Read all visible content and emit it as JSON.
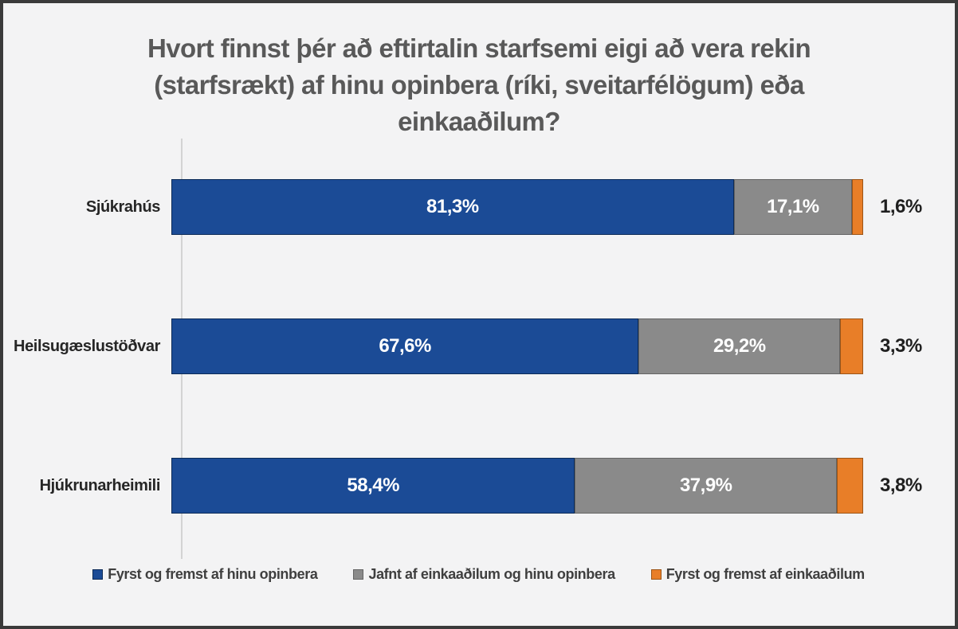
{
  "title": "Hvort finnst þér að eftirtalin starfsemi eigi að vera rekin (starfsrækt) af hinu opinbera (ríki, sveitarfélögum) eða einkaaðilum?",
  "colors": {
    "background": "#f3f3f4",
    "frame_border": "#3a3a3a",
    "title_text": "#595959",
    "category_text": "#262626",
    "inside_label_text": "#ffffff",
    "outside_label_text": "#1f1f1f",
    "legend_text": "#3f3f3f",
    "axis_line": "#d3d3d3",
    "series_blue": "#1b4b96",
    "series_gray": "#8a8a8a",
    "series_orange": "#e87e28"
  },
  "chart_data": {
    "type": "bar",
    "orientation": "horizontal",
    "stacked": true,
    "title": "Hvort finnst þér að eftirtalin starfsemi eigi að vera rekin (starfsrækt) af hinu opinbera (ríki, sveitarfélögum) eða einkaaðilum?",
    "categories": [
      "Sjúkrahús",
      "Heilsugæslustöðvar",
      "Hjúkrunarheimili"
    ],
    "series": [
      {
        "name": "Fyrst og fremst af hinu opinbera",
        "color": "#1b4b96",
        "values": [
          81.3,
          67.6,
          58.4
        ],
        "labels": [
          "81,3%",
          "67,6%",
          "58,4%"
        ],
        "label_position": "inside"
      },
      {
        "name": "Jafnt af einkaaðilum og hinu opinbera",
        "color": "#8a8a8a",
        "values": [
          17.1,
          29.2,
          37.9
        ],
        "labels": [
          "17,1%",
          "29,2%",
          "37,9%"
        ],
        "label_position": "inside"
      },
      {
        "name": "Fyrst og fremst af einkaaðilum",
        "color": "#e87e28",
        "values": [
          1.6,
          3.3,
          3.8
        ],
        "labels": [
          "1,6%",
          "3,3%",
          "3,8%"
        ],
        "label_position": "outside-end"
      }
    ],
    "xlim": [
      0,
      100
    ],
    "value_format": "percent, comma decimal separator",
    "grid": false,
    "legend_position": "bottom"
  }
}
